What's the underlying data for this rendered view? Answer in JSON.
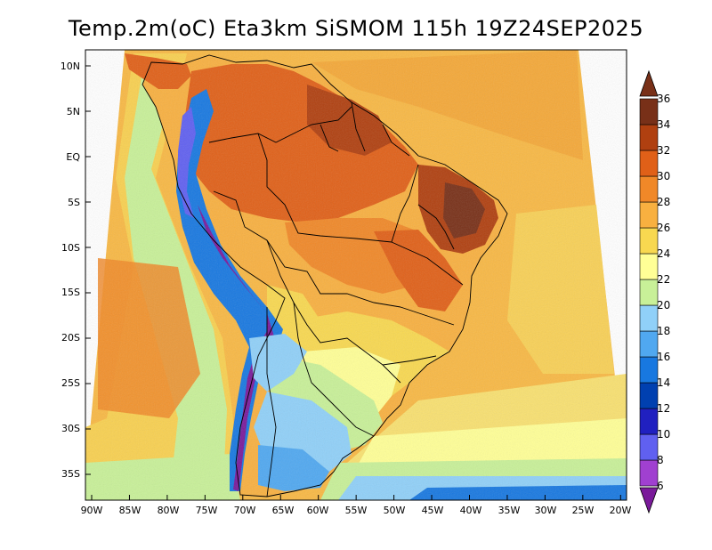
{
  "title": "Temp.2m(oC) Eta3km SiSMOM 115h 19Z24SEP2025",
  "axes": {
    "lat_labels": [
      "10N",
      "5N",
      "EQ",
      "5S",
      "10S",
      "15S",
      "20S",
      "25S",
      "30S",
      "35S"
    ],
    "lat_values": [
      10,
      5,
      0,
      -5,
      -10,
      -15,
      -20,
      -25,
      -30,
      -35
    ],
    "lon_labels": [
      "90W",
      "85W",
      "80W",
      "75W",
      "70W",
      "65W",
      "60W",
      "55W",
      "50W",
      "45W",
      "40W",
      "35W",
      "30W",
      "25W",
      "20W"
    ],
    "lon_values": [
      -90,
      -85,
      -80,
      -75,
      -70,
      -65,
      -60,
      -55,
      -50,
      -45,
      -40,
      -35,
      -30,
      -25,
      -20
    ]
  },
  "colorbar": {
    "levels": [
      6,
      8,
      10,
      12,
      14,
      16,
      18,
      20,
      22,
      24,
      26,
      28,
      30,
      32,
      34,
      36
    ],
    "labels": [
      "6",
      "8",
      "10",
      "12",
      "14",
      "16",
      "18",
      "20",
      "22",
      "24",
      "26",
      "28",
      "30",
      "32",
      "34",
      "36"
    ],
    "colors": [
      "#7a1a9a",
      "#a040d0",
      "#6060f0",
      "#2020c0",
      "#0040b0",
      "#1878e0",
      "#50a8f0",
      "#90d0f8",
      "#c8f098",
      "#ffff96",
      "#f8d850",
      "#f8b040",
      "#f08828",
      "#e06018",
      "#b04010",
      "#783018"
    ]
  },
  "colors": {
    "ocean_mid": "#f8b844",
    "ocean_north": "#f4a838",
    "ocean_south": "#f8e070",
    "coast_cool": "#c8f098",
    "border": "#000000"
  }
}
